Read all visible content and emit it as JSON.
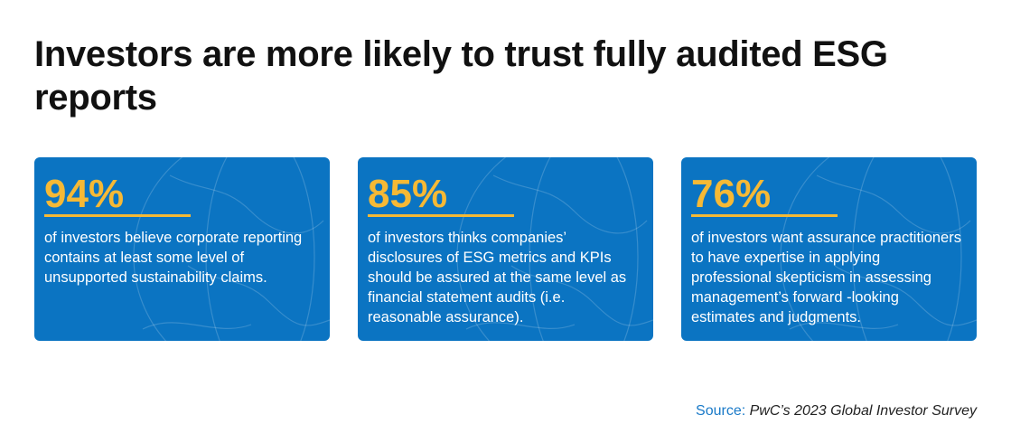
{
  "header": {
    "title": "Investors are more likely to trust fully audited ESG reports"
  },
  "cards": [
    {
      "stat": "94%",
      "text": "of investors believe corporate reporting contains at least some level of unsupported sustainability claims."
    },
    {
      "stat": "85%",
      "text": "of investors thinks companies’ disclosures of ESG metrics and KPIs should be assured at the same level as financial statement audits (i.e. reasonable assurance)."
    },
    {
      "stat": "76%",
      "text": "of investors want assurance practitioners to have expertise in applying professional skepticism in assessing management’s forward -looking estimates and judgments."
    }
  ],
  "source": {
    "label": "Source:",
    "text": "PwC’s 2023 Global Investor Survey"
  }
}
